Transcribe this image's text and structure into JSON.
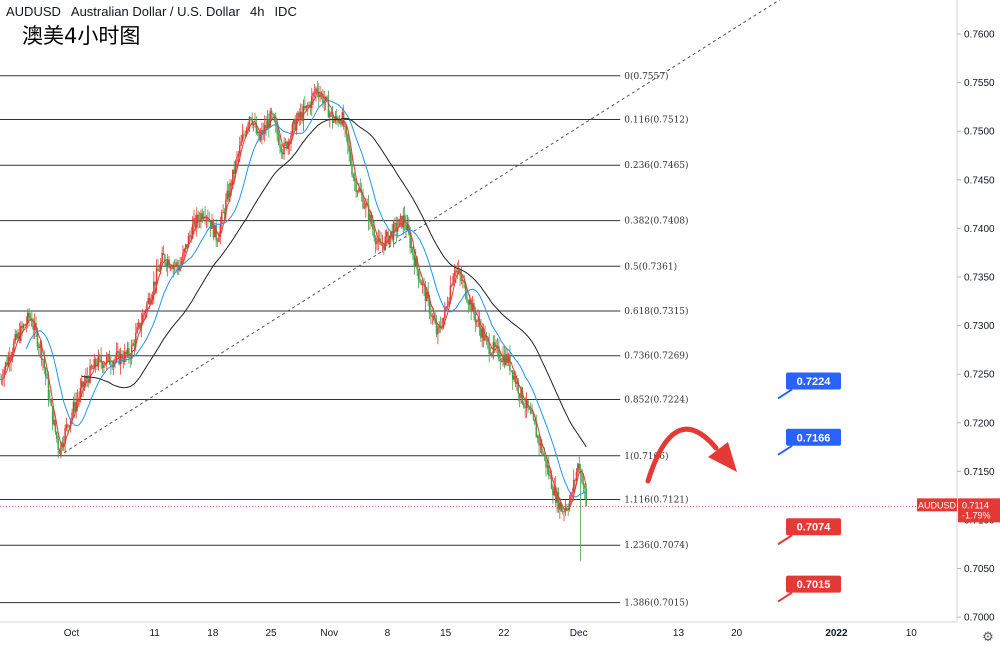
{
  "header": {
    "symbol": "AUDUSD",
    "description": "Australian Dollar / U.S. Dollar",
    "interval": "4h",
    "source": "IDC",
    "cn_title": "澳美4小时图"
  },
  "colors": {
    "up": "#e53935",
    "down": "#43a047",
    "ma_fast": "#e53935",
    "ma_mid": "#2196f3",
    "ma_slow": "#212121",
    "fib_line": "#333333",
    "badge_blue": "#2962ff",
    "badge_red": "#e53935",
    "arrow": "#e53935",
    "current_price": "#e53935"
  },
  "chart_data": {
    "type": "candlestick",
    "symbol": "AUDUSD",
    "ylim": [
      0.6995,
      0.7635
    ],
    "y_ticks": [
      "0.7600",
      "0.7550",
      "0.7500",
      "0.7450",
      "0.7400",
      "0.7350",
      "0.7300",
      "0.7250",
      "0.7200",
      "0.7150",
      "0.7100",
      "0.7050",
      "0.7000"
    ],
    "x_ticks": [
      {
        "label": "Oct",
        "day": 0
      },
      {
        "label": "11",
        "day": 10
      },
      {
        "label": "18",
        "day": 17
      },
      {
        "label": "25",
        "day": 24
      },
      {
        "label": "Nov",
        "day": 31
      },
      {
        "label": "8",
        "day": 38
      },
      {
        "label": "15",
        "day": 45
      },
      {
        "label": "22",
        "day": 52
      },
      {
        "label": "Dec",
        "day": 61
      },
      {
        "label": "13",
        "day": 73
      },
      {
        "label": "20",
        "day": 80
      },
      {
        "label": "2022",
        "day": 92
      },
      {
        "label": "10",
        "day": 101
      }
    ],
    "xlim_days": [
      -8.6,
      106.5
    ],
    "price_path": [
      [
        -8.6,
        0.7245
      ],
      [
        -7.0,
        0.728
      ],
      [
        -5.0,
        0.731
      ],
      [
        -3.5,
        0.727
      ],
      [
        -2.5,
        0.7215
      ],
      [
        -1.5,
        0.7172
      ],
      [
        0.0,
        0.721
      ],
      [
        1.5,
        0.724
      ],
      [
        3.0,
        0.7262
      ],
      [
        5.0,
        0.7265
      ],
      [
        7.0,
        0.727
      ],
      [
        9.0,
        0.732
      ],
      [
        11.0,
        0.737
      ],
      [
        13.0,
        0.736
      ],
      [
        14.5,
        0.74
      ],
      [
        16.0,
        0.742
      ],
      [
        17.5,
        0.739
      ],
      [
        19.0,
        0.744
      ],
      [
        20.5,
        0.749
      ],
      [
        21.5,
        0.752
      ],
      [
        22.5,
        0.749
      ],
      [
        24.0,
        0.7515
      ],
      [
        25.5,
        0.748
      ],
      [
        27.0,
        0.751
      ],
      [
        28.5,
        0.7525
      ],
      [
        29.5,
        0.7545
      ],
      [
        30.5,
        0.753
      ],
      [
        31.5,
        0.751
      ],
      [
        32.5,
        0.7515
      ],
      [
        34.0,
        0.745
      ],
      [
        35.5,
        0.742
      ],
      [
        37.0,
        0.738
      ],
      [
        38.5,
        0.7395
      ],
      [
        40.0,
        0.741
      ],
      [
        41.5,
        0.736
      ],
      [
        43.0,
        0.732
      ],
      [
        44.0,
        0.729
      ],
      [
        45.0,
        0.7315
      ],
      [
        46.0,
        0.736
      ],
      [
        47.0,
        0.7345
      ],
      [
        48.5,
        0.731
      ],
      [
        50.0,
        0.728
      ],
      [
        51.5,
        0.727
      ],
      [
        52.5,
        0.7265
      ],
      [
        54.0,
        0.723
      ],
      [
        55.5,
        0.72
      ],
      [
        57.0,
        0.716
      ],
      [
        58.0,
        0.713
      ],
      [
        59.0,
        0.711
      ],
      [
        60.0,
        0.712
      ],
      [
        60.5,
        0.714
      ],
      [
        61.0,
        0.716
      ],
      [
        61.5,
        0.714
      ],
      [
        62.0,
        0.7114
      ]
    ],
    "last_price": "0.7114",
    "last_change": "-1.79%",
    "moving_averages": [
      "fast (red)",
      "mid (blue)",
      "slow (black)"
    ],
    "fibonacci": {
      "anchor_start": {
        "day": -1.5,
        "price": 0.7166
      },
      "anchor_end": {
        "day": 31.0,
        "price": 0.7557
      },
      "line_start_day": -8.6,
      "line_end_day": 66.0,
      "diagonal_end_day": 86.0,
      "levels": [
        {
          "ratio": "0",
          "price": 0.7557,
          "label": "0(0.7557)"
        },
        {
          "ratio": "0.116",
          "price": 0.7512,
          "label": "0.116(0.7512)"
        },
        {
          "ratio": "0.236",
          "price": 0.7465,
          "label": "0.236(0.7465)"
        },
        {
          "ratio": "0.382",
          "price": 0.7408,
          "label": "0.382(0.7408)"
        },
        {
          "ratio": "0.5",
          "price": 0.7361,
          "label": "0.5(0.7361)"
        },
        {
          "ratio": "0.618",
          "price": 0.7315,
          "label": "0.618(0.7315)"
        },
        {
          "ratio": "0.736",
          "price": 0.7269,
          "label": "0.736(0.7269)"
        },
        {
          "ratio": "0.852",
          "price": 0.7224,
          "label": "0.852(0.7224)"
        },
        {
          "ratio": "1",
          "price": 0.7166,
          "label": "1(0.7166)"
        },
        {
          "ratio": "1.116",
          "price": 0.7121,
          "label": "1.116(0.7121)"
        },
        {
          "ratio": "1.236",
          "price": 0.7074,
          "label": "1.236(0.7074)"
        },
        {
          "ratio": "1.386",
          "price": 0.7015,
          "label": "1.386(0.7015)"
        }
      ]
    },
    "annotations": [
      {
        "text": "0.7224",
        "price": 0.7224,
        "color": "blue"
      },
      {
        "text": "0.7166",
        "price": 0.7166,
        "color": "blue"
      },
      {
        "text": "0.7074",
        "price": 0.7074,
        "color": "red"
      },
      {
        "text": "0.7015",
        "price": 0.7015,
        "color": "red"
      }
    ],
    "arrow": {
      "direction": "up-then-down",
      "color": "red"
    }
  },
  "current_price_label": {
    "symbol": "AUDUSD",
    "price": "0.7114",
    "change": "-1.79%"
  }
}
